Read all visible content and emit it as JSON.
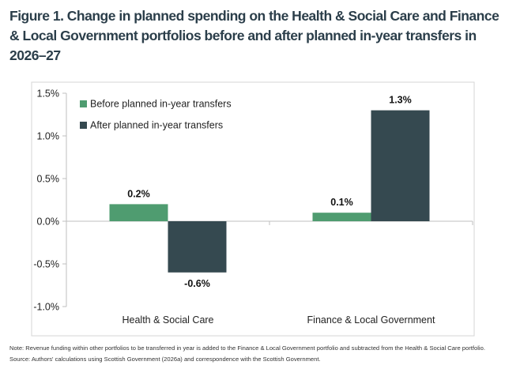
{
  "title": "Figure 1. Change in planned spending on the Health & Social Care and Finance & Local Government portfolios before and after planned in-year transfers in 2026–27",
  "chart_data": {
    "type": "bar",
    "categories": [
      "Health & Social Care",
      "Finance & Local Government"
    ],
    "series": [
      {
        "name": "Before planned in-year transfers",
        "values": [
          0.2,
          0.1
        ],
        "labels": [
          "0.2%",
          "0.1%"
        ],
        "color": "#4f9c70"
      },
      {
        "name": "After planned in-year transfers",
        "values": [
          -0.6,
          1.3
        ],
        "labels": [
          "-0.6%",
          "1.3%"
        ],
        "color": "#354950"
      }
    ],
    "ylim": [
      -1.0,
      1.5
    ],
    "yticks": [
      1.5,
      1.0,
      0.5,
      0.0,
      -0.5,
      -1.0
    ],
    "ytick_labels": [
      "1.5%",
      "1.0%",
      "0.5%",
      "0.0%",
      "-0.5%",
      "-1.0%"
    ],
    "grid": false,
    "legend_position": "top-left"
  },
  "notes": {
    "note": "Note: Revenue funding within other portfolios to be transferred in year is added to the Finance & Local Government portfolio and subtracted from the Health & Social Care portfolio.",
    "source": "Source: Authors' calculations using Scottish Government (2026a) and correspondence with the Scottish Government."
  }
}
